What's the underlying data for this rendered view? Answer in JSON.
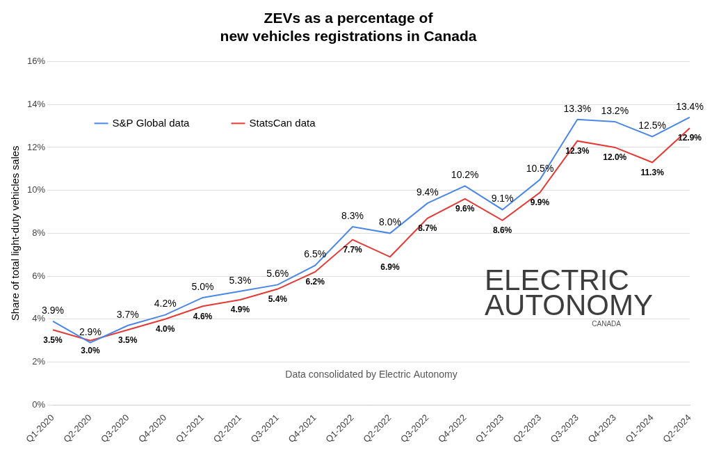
{
  "chart_data": {
    "type": "line",
    "title": [
      "ZEVs as a percentage of",
      "new vehicles registrations in Canada"
    ],
    "y_label": "Share of total light-duty vehicles sales",
    "note": "Data consolidated by Electric Autonomy",
    "logo": [
      "ELECTRIC",
      "AUTONOMY",
      "CANADA"
    ],
    "categories": [
      "Q1-2020",
      "Q2-2020",
      "Q3-2020",
      "Q4-2020",
      "Q1-2021",
      "Q2-2021",
      "Q3-2021",
      "Q4-2021",
      "Q1-2022",
      "Q2-2022",
      "Q3-2022",
      "Q4-2022",
      "Q1-2023",
      "Q2-2023",
      "Q3-2023",
      "Q4-2023",
      "Q1-2024",
      "Q2-2024"
    ],
    "series": [
      {
        "name": "S&P Global data",
        "color": "#4a86e8",
        "values": [
          3.9,
          2.9,
          3.7,
          4.2,
          5.0,
          5.3,
          5.6,
          6.5,
          8.3,
          8.0,
          9.4,
          10.2,
          9.1,
          10.5,
          13.3,
          13.2,
          12.5,
          13.4
        ],
        "value_labels": [
          "3.9%",
          "2.9%",
          "3.7%",
          "4.2%",
          "5.0%",
          "5.3%",
          "5.6%",
          "6.5%",
          "8.3%",
          "8.0%",
          "9.4%",
          "10.2%",
          "9.1%",
          "10.5%",
          "13.3%",
          "13.2%",
          "12.5%",
          "13.4%"
        ]
      },
      {
        "name": "StatsCan data",
        "color": "#e53935",
        "values": [
          3.5,
          3.0,
          3.5,
          4.0,
          4.6,
          4.9,
          5.4,
          6.2,
          7.7,
          6.9,
          8.7,
          9.6,
          8.6,
          9.9,
          12.3,
          12.0,
          11.3,
          12.9
        ],
        "value_labels": [
          "3.5%",
          "3.0%",
          "3.5%",
          "4.0%",
          "4.6%",
          "4.9%",
          "5.4%",
          "6.2%",
          "7.7%",
          "6.9%",
          "8.7%",
          "9.6%",
          "8.6%",
          "9.9%",
          "12.3%",
          "12.0%",
          "11.3%",
          "12.9%"
        ]
      }
    ],
    "ylim": [
      0,
      16
    ],
    "yticks": [
      {
        "value": 0,
        "label": "0%"
      },
      {
        "value": 2,
        "label": "2%"
      },
      {
        "value": 4,
        "label": "4%"
      },
      {
        "value": 6,
        "label": "6%"
      },
      {
        "value": 8,
        "label": "8%"
      },
      {
        "value": 10,
        "label": "10%"
      },
      {
        "value": 12,
        "label": "12%"
      },
      {
        "value": 14,
        "label": "14%"
      },
      {
        "value": 16,
        "label": "16%"
      }
    ],
    "grid": true,
    "legend": "upper left",
    "data_labels": true
  }
}
